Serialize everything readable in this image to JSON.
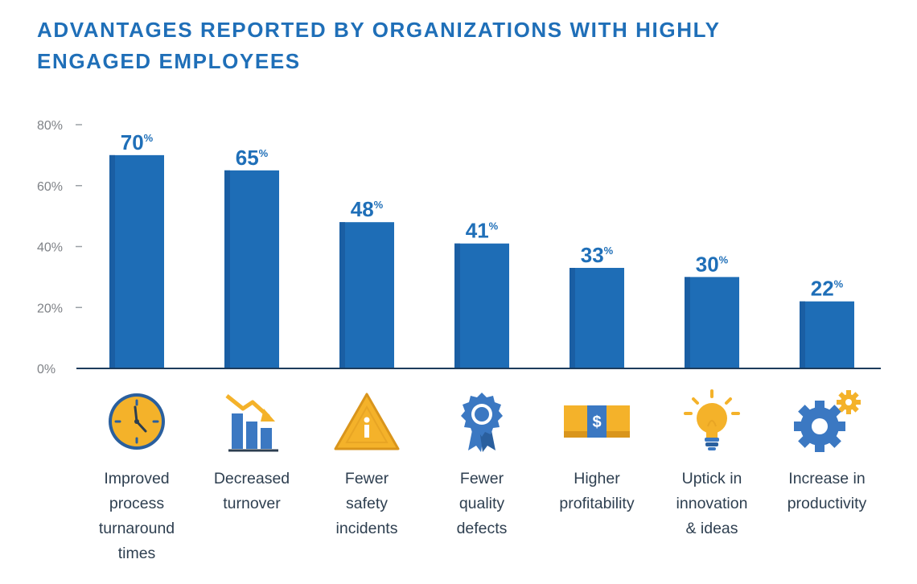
{
  "title_lines": [
    "ADVANTAGES REPORTED BY ORGANIZATIONS WITH HIGHLY",
    "ENGAGED EMPLOYEES"
  ],
  "colors": {
    "title": "#1f6fb8",
    "bar": "#1e6db6",
    "bar_edge": "#1a5ea3",
    "icon_blue": "#3b78c2",
    "icon_yellow": "#f4b22a",
    "axis": "#1d3c5c",
    "tick_text": "#7f8287"
  },
  "chart_data": {
    "type": "bar",
    "title": "ADVANTAGES REPORTED BY ORGANIZATIONS WITH HIGHLY ENGAGED EMPLOYEES",
    "categories": [
      "Improved process turnaround times",
      "Decreased turnover",
      "Fewer safety incidents",
      "Fewer quality defects",
      "Higher profitability",
      "Uptick in innovation & ideas",
      "Increase in productivity"
    ],
    "values": [
      70,
      65,
      48,
      41,
      33,
      30,
      22
    ],
    "ylim": [
      0,
      80
    ],
    "yticks": [
      "0%",
      "20%",
      "40%",
      "60%",
      "80%"
    ],
    "ytick_values": [
      0,
      20,
      40,
      60,
      80
    ],
    "value_suffix": "%",
    "grid": false,
    "legend": "none"
  },
  "categories_display": [
    {
      "lines": [
        "Improved",
        "process",
        "turnaround",
        "times"
      ],
      "icon": "clock-icon"
    },
    {
      "lines": [
        "Decreased",
        "turnover"
      ],
      "icon": "declining-bar-chart-icon"
    },
    {
      "lines": [
        "Fewer",
        "safety",
        "incidents"
      ],
      "icon": "warning-triangle-icon"
    },
    {
      "lines": [
        "Fewer",
        "quality",
        "defects"
      ],
      "icon": "award-ribbon-icon"
    },
    {
      "lines": [
        "Higher",
        "profitability"
      ],
      "icon": "dollar-bill-icon"
    },
    {
      "lines": [
        "Uptick in",
        "innovation",
        "& ideas"
      ],
      "icon": "lightbulb-icon"
    },
    {
      "lines": [
        "Increase in",
        "productivity"
      ],
      "icon": "gears-icon"
    }
  ]
}
